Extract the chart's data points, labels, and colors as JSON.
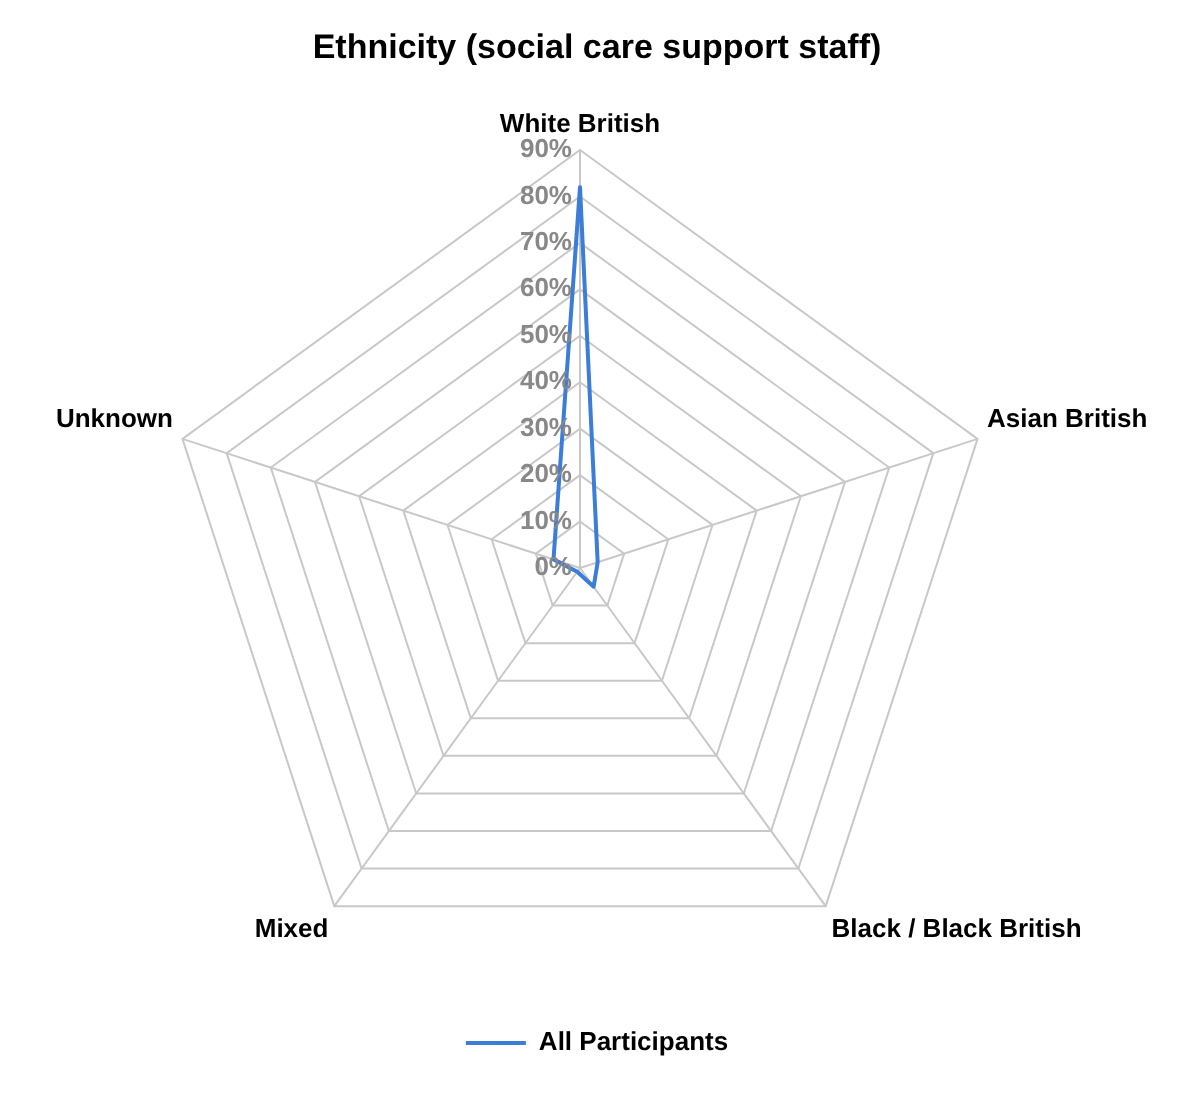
{
  "chart_data": {
    "type": "radar",
    "title": "Ethnicity (social care support staff)",
    "categories": [
      "White British",
      "Asian British",
      "Black / Black British",
      "Mixed",
      "Unknown"
    ],
    "series": [
      {
        "name": "All Participants",
        "color": "#3b7dd8",
        "values": [
          82,
          4,
          5,
          1,
          6
        ]
      }
    ],
    "ylim": [
      0,
      90
    ],
    "yticks": [
      {
        "value": 0,
        "label": "0%"
      },
      {
        "value": 10,
        "label": "10%"
      },
      {
        "value": 20,
        "label": "20%"
      },
      {
        "value": 30,
        "label": "30%"
      },
      {
        "value": 40,
        "label": "40%"
      },
      {
        "value": 50,
        "label": "50%"
      },
      {
        "value": 60,
        "label": "60%"
      },
      {
        "value": 70,
        "label": "70%"
      },
      {
        "value": 80,
        "label": "80%"
      },
      {
        "value": 90,
        "label": "90%"
      }
    ],
    "grid": true,
    "legend": "bottom",
    "marker": "none"
  }
}
